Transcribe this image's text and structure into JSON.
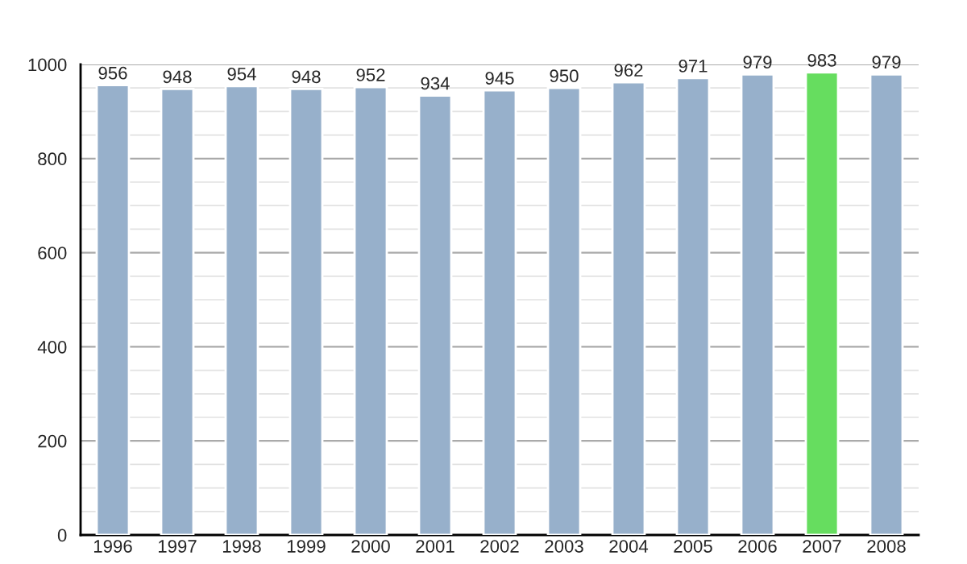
{
  "chart_data": {
    "type": "bar",
    "categories": [
      "1996",
      "1997",
      "1998",
      "1999",
      "2000",
      "2001",
      "2002",
      "2003",
      "2004",
      "2005",
      "2006",
      "2007",
      "2008"
    ],
    "values": [
      956,
      948,
      954,
      948,
      952,
      934,
      945,
      950,
      962,
      971,
      979,
      983,
      979
    ],
    "colors": [
      "#97b0cb",
      "#97b0cb",
      "#97b0cb",
      "#97b0cb",
      "#97b0cb",
      "#97b0cb",
      "#97b0cb",
      "#97b0cb",
      "#97b0cb",
      "#97b0cb",
      "#97b0cb",
      "#66dd5f",
      "#97b0cb"
    ],
    "ylim": [
      0,
      1000
    ],
    "yticks": [
      0,
      200,
      400,
      600,
      800,
      1000
    ],
    "grid": "y",
    "data_labels": true
  }
}
